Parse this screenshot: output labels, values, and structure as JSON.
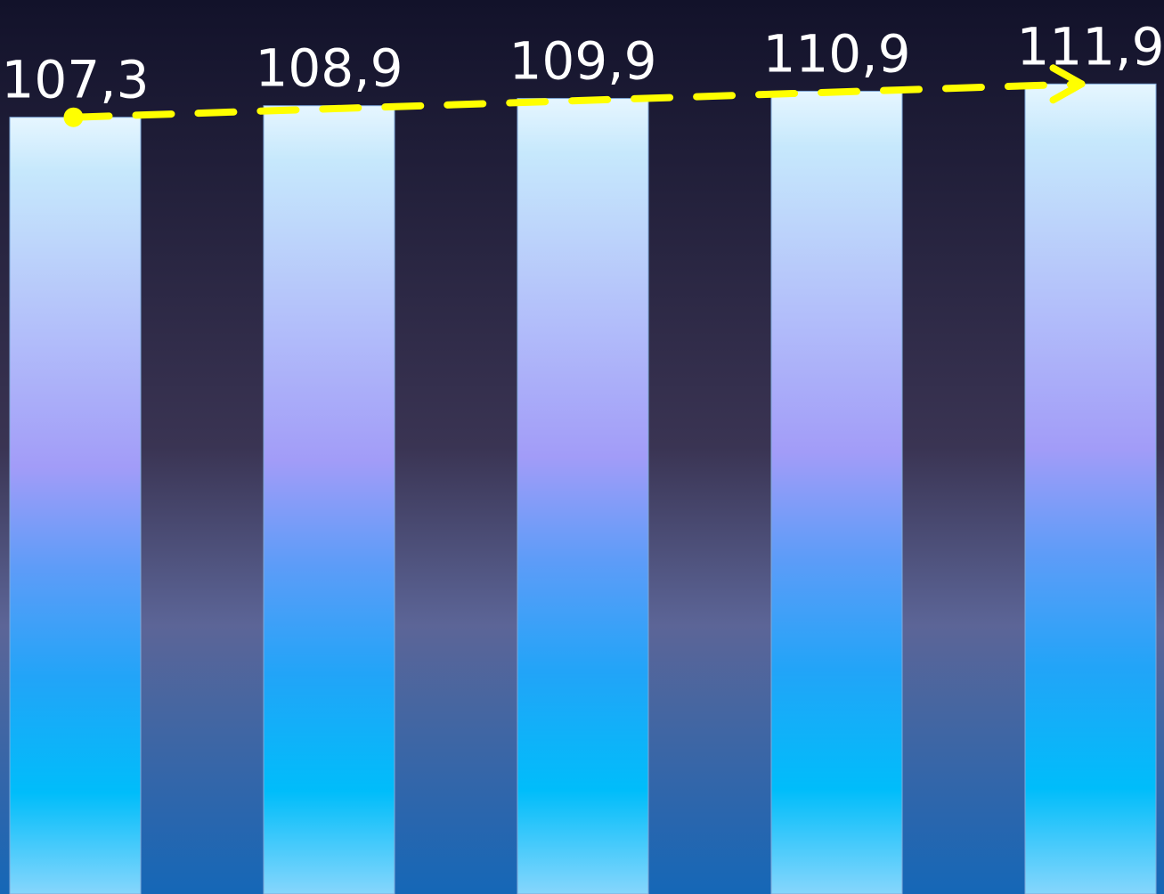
{
  "chart_data": {
    "type": "bar",
    "categories": [
      null,
      null,
      null,
      null,
      null
    ],
    "values": [
      107.3,
      108.9,
      109.9,
      110.9,
      111.9
    ],
    "value_labels": [
      "107,3",
      "108,9",
      "109,9",
      "110,9",
      "111,9"
    ],
    "ylim": [
      0,
      123.5
    ],
    "trend_color": "#ffff00"
  }
}
